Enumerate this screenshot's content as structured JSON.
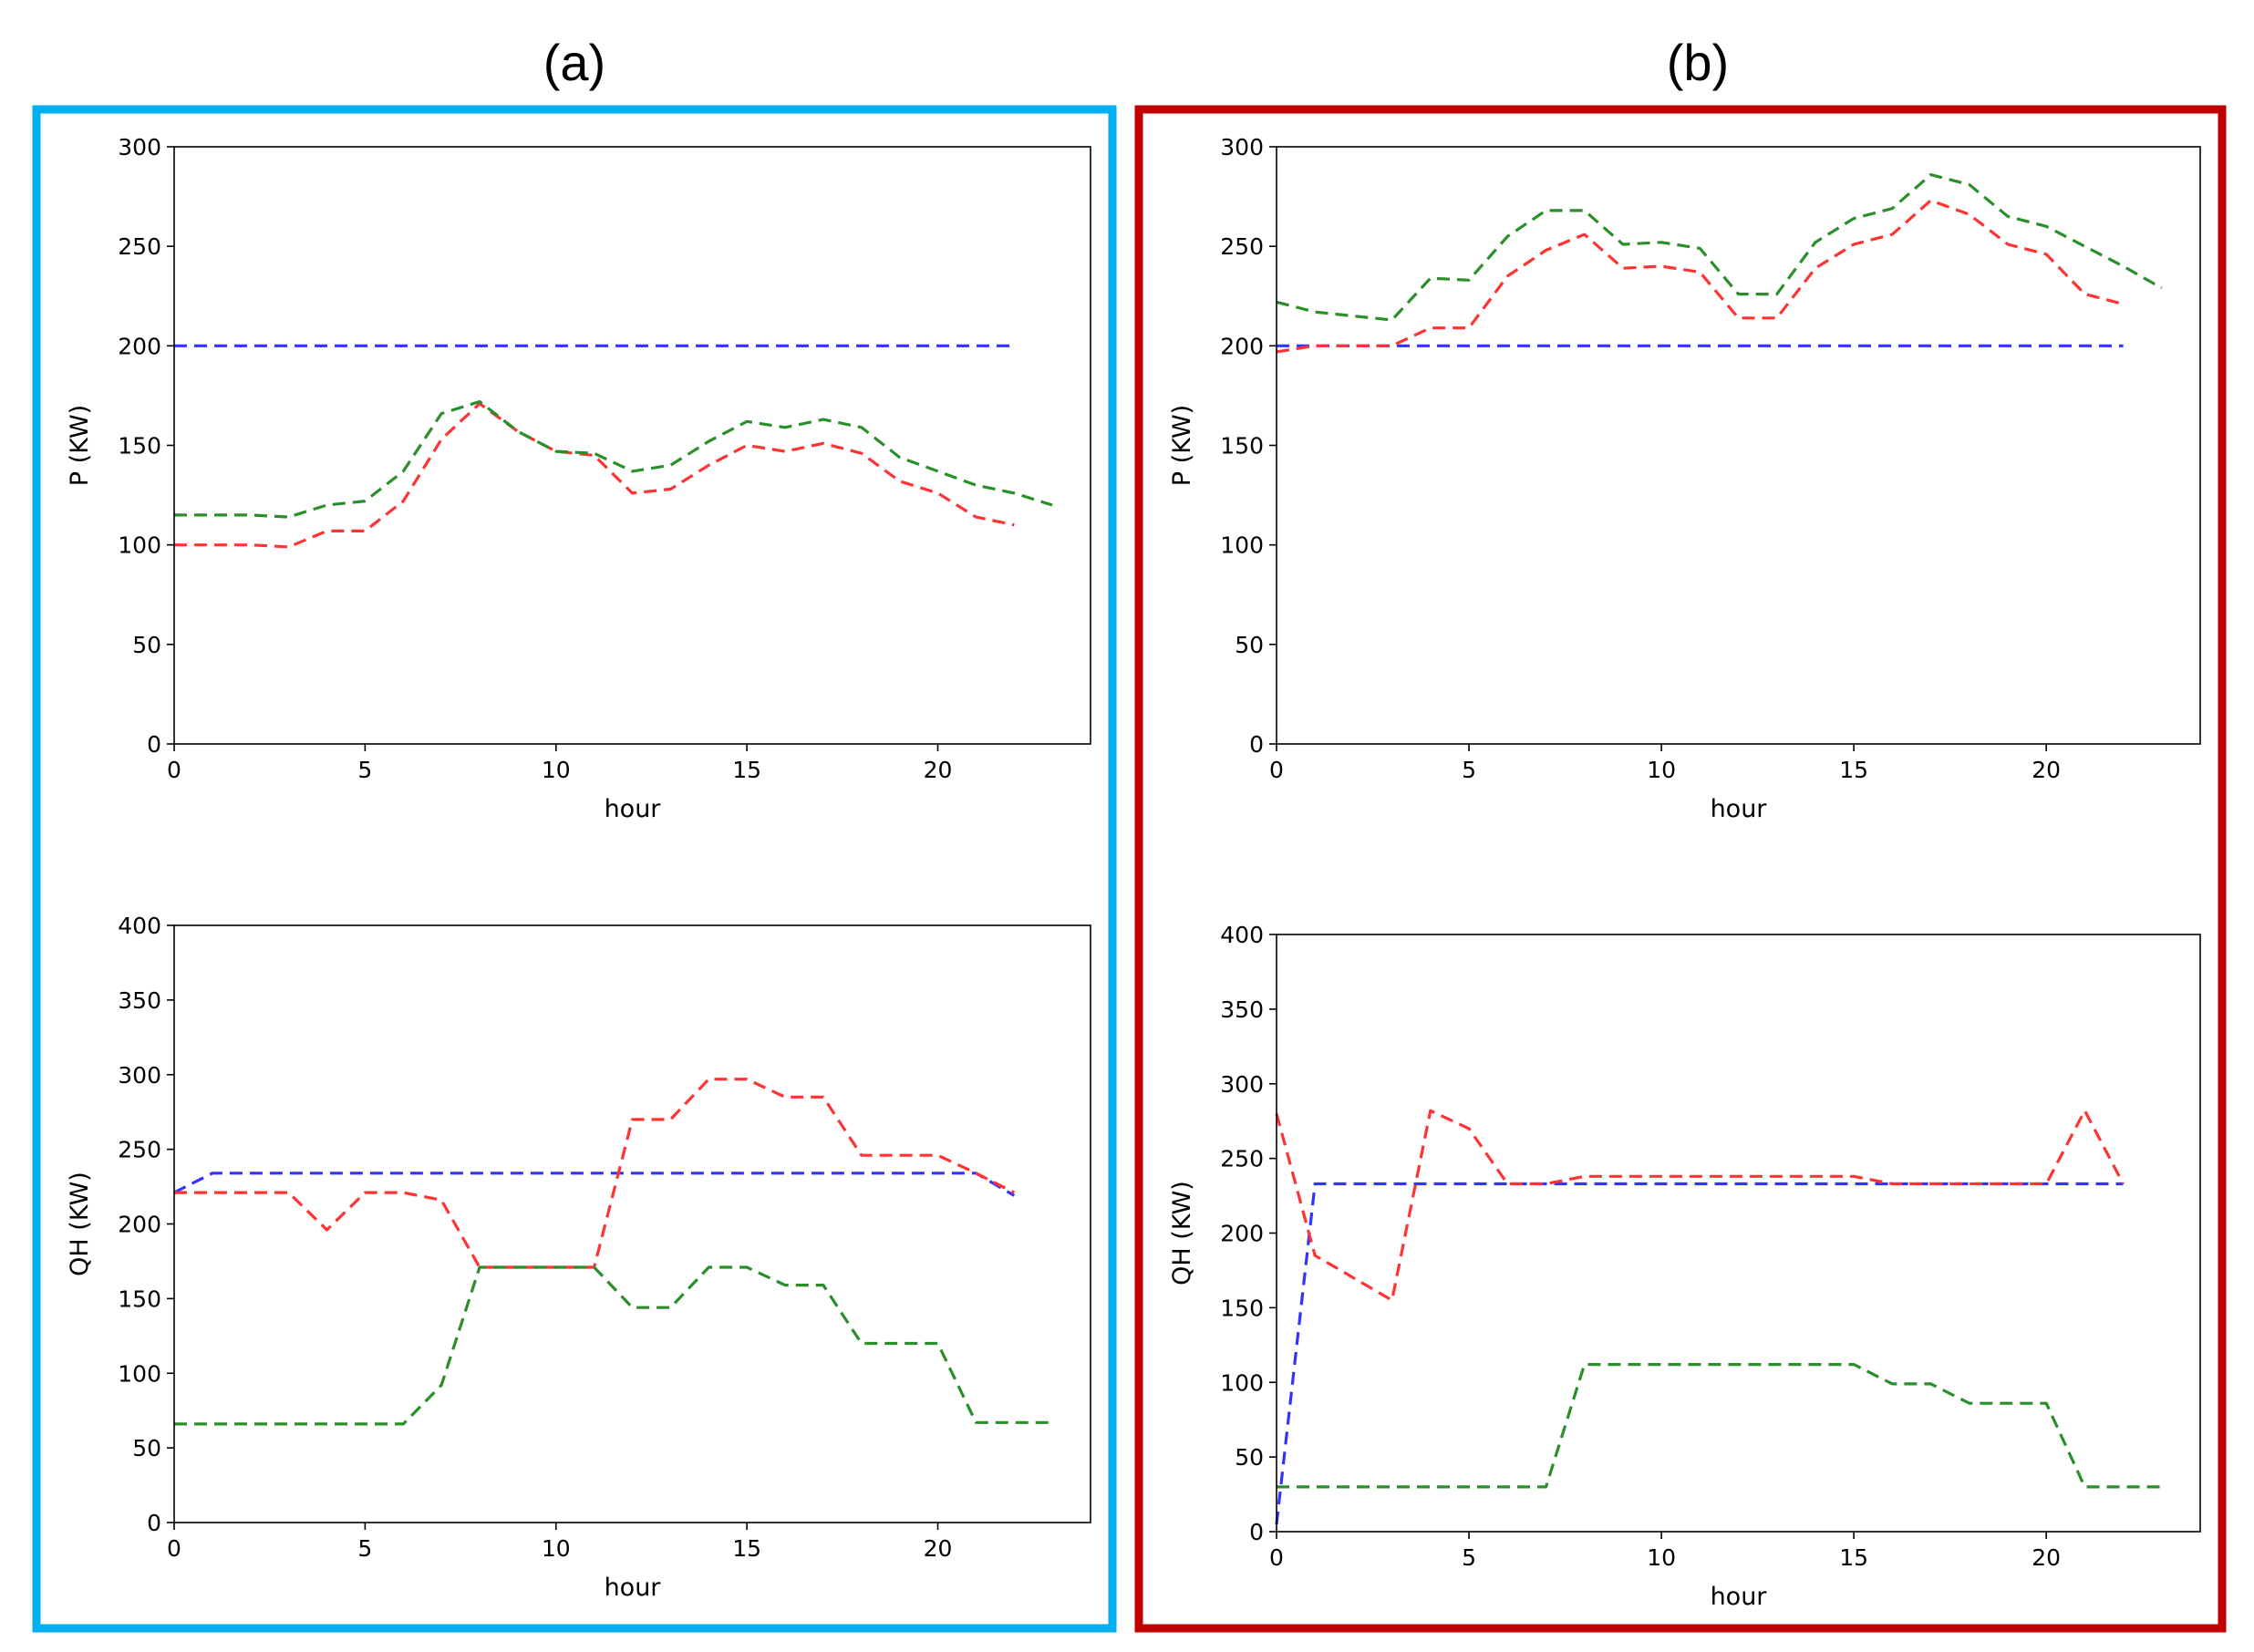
{
  "panels": [
    {
      "label": "(a)",
      "border_color": "#00b0f0"
    },
    {
      "label": "(b)",
      "border_color": "#c00000"
    }
  ],
  "series_colors": {
    "blue": "#3333ff",
    "red": "#ff3333",
    "green": "#2a8f2a"
  },
  "chart_data": [
    {
      "id": "a-power",
      "panel": "(a)",
      "type": "line",
      "xlabel": "hour",
      "ylabel": "P (KW)",
      "xlim": [
        0,
        24
      ],
      "ylim": [
        0,
        300
      ],
      "xticks": [
        0,
        5,
        10,
        15,
        20
      ],
      "yticks": [
        0,
        50,
        100,
        150,
        200,
        250,
        300
      ],
      "series": [
        {
          "color": "blue",
          "x": [
            0,
            1,
            2,
            3,
            4,
            5,
            6,
            7,
            8,
            9,
            10,
            11,
            12,
            13,
            14,
            15,
            16,
            17,
            18,
            19,
            20,
            21,
            22
          ],
          "values": [
            200,
            200,
            200,
            200,
            200,
            200,
            200,
            200,
            200,
            200,
            200,
            200,
            200,
            200,
            200,
            200,
            200,
            200,
            200,
            200,
            200,
            200,
            200
          ]
        },
        {
          "color": "red",
          "x": [
            0,
            1,
            2,
            3,
            4,
            5,
            6,
            7,
            8,
            9,
            10,
            11,
            12,
            13,
            14,
            15,
            16,
            17,
            18,
            19,
            20,
            21,
            22
          ],
          "values": [
            100,
            100,
            100,
            99,
            107,
            107,
            122,
            153,
            171,
            157,
            147,
            145,
            126,
            128,
            140,
            150,
            147,
            151,
            146,
            132,
            126,
            114,
            110
          ]
        },
        {
          "color": "green",
          "x": [
            0,
            1,
            2,
            3,
            4,
            5,
            6,
            7,
            8,
            9,
            10,
            11,
            12,
            13,
            14,
            15,
            16,
            17,
            18,
            19,
            20,
            21,
            22,
            23
          ],
          "values": [
            115,
            115,
            115,
            114,
            120,
            122,
            137,
            166,
            172,
            157,
            147,
            146,
            137,
            140,
            152,
            162,
            159,
            163,
            159,
            144,
            137,
            130,
            126,
            120
          ]
        }
      ]
    },
    {
      "id": "a-heat",
      "panel": "(a)",
      "type": "line",
      "xlabel": "hour",
      "ylabel": "QH (KW)",
      "xlim": [
        0,
        24
      ],
      "ylim": [
        0,
        400
      ],
      "xticks": [
        0,
        5,
        10,
        15,
        20
      ],
      "yticks": [
        0,
        50,
        100,
        150,
        200,
        250,
        300,
        350,
        400
      ],
      "series": [
        {
          "color": "blue",
          "x": [
            0,
            1,
            2,
            3,
            4,
            5,
            6,
            7,
            8,
            9,
            10,
            11,
            12,
            13,
            14,
            15,
            16,
            17,
            18,
            19,
            20,
            21,
            22
          ],
          "values": [
            221,
            234,
            234,
            234,
            234,
            234,
            234,
            234,
            234,
            234,
            234,
            234,
            234,
            234,
            234,
            234,
            234,
            234,
            234,
            234,
            234,
            234,
            219
          ]
        },
        {
          "color": "red",
          "x": [
            0,
            1,
            2,
            3,
            4,
            5,
            6,
            7,
            8,
            9,
            10,
            11,
            12,
            13,
            14,
            15,
            16,
            17,
            18,
            19,
            20,
            21,
            22
          ],
          "values": [
            221,
            221,
            221,
            221,
            196,
            221,
            221,
            216,
            171,
            171,
            171,
            171,
            270,
            270,
            297,
            297,
            285,
            285,
            246,
            246,
            246,
            234,
            221
          ]
        },
        {
          "color": "green",
          "x": [
            0,
            1,
            2,
            3,
            4,
            5,
            6,
            7,
            8,
            9,
            10,
            11,
            12,
            13,
            14,
            15,
            16,
            17,
            18,
            19,
            20,
            21,
            22,
            23
          ],
          "values": [
            66,
            66,
            66,
            66,
            66,
            66,
            66,
            92,
            171,
            171,
            171,
            171,
            144,
            144,
            171,
            171,
            159,
            159,
            120,
            120,
            120,
            67,
            67,
            67
          ]
        }
      ]
    },
    {
      "id": "b-power",
      "panel": "(b)",
      "type": "line",
      "xlabel": "hour",
      "ylabel": "P (KW)",
      "xlim": [
        0,
        24
      ],
      "ylim": [
        0,
        300
      ],
      "xticks": [
        0,
        5,
        10,
        15,
        20
      ],
      "yticks": [
        0,
        50,
        100,
        150,
        200,
        250,
        300
      ],
      "series": [
        {
          "color": "blue",
          "x": [
            0,
            1,
            2,
            3,
            4,
            5,
            6,
            7,
            8,
            9,
            10,
            11,
            12,
            13,
            14,
            15,
            16,
            17,
            18,
            19,
            20,
            21,
            22
          ],
          "values": [
            200,
            200,
            200,
            200,
            200,
            200,
            200,
            200,
            200,
            200,
            200,
            200,
            200,
            200,
            200,
            200,
            200,
            200,
            200,
            200,
            200,
            200,
            200
          ]
        },
        {
          "color": "red",
          "x": [
            0,
            1,
            2,
            3,
            4,
            5,
            6,
            7,
            8,
            9,
            10,
            11,
            12,
            13,
            14,
            15,
            16,
            17,
            18,
            19,
            20,
            21,
            22
          ],
          "values": [
            197,
            200,
            200,
            200,
            209,
            209,
            235,
            248,
            256,
            239,
            240,
            237,
            214,
            214,
            239,
            251,
            256,
            273,
            266,
            251,
            246,
            226,
            221
          ]
        },
        {
          "color": "green",
          "x": [
            0,
            1,
            2,
            3,
            4,
            5,
            6,
            7,
            8,
            9,
            10,
            11,
            12,
            13,
            14,
            15,
            16,
            17,
            18,
            19,
            20,
            21,
            22,
            23
          ],
          "values": [
            222,
            217,
            215,
            213,
            234,
            233,
            255,
            268,
            268,
            251,
            252,
            249,
            226,
            226,
            252,
            264,
            269,
            286,
            281,
            265,
            260,
            250,
            240,
            229
          ]
        }
      ]
    },
    {
      "id": "b-heat",
      "panel": "(b)",
      "type": "line",
      "xlabel": "hour",
      "ylabel": "QH (KW)",
      "xlim": [
        0,
        24
      ],
      "ylim": [
        0,
        400
      ],
      "xticks": [
        0,
        5,
        10,
        15,
        20
      ],
      "yticks": [
        0,
        50,
        100,
        150,
        200,
        250,
        300,
        350,
        400
      ],
      "series": [
        {
          "color": "blue",
          "x": [
            0,
            1,
            2,
            3,
            4,
            5,
            6,
            7,
            8,
            9,
            10,
            11,
            12,
            13,
            14,
            15,
            16,
            17,
            18,
            19,
            20,
            21,
            22
          ],
          "values": [
            5,
            233,
            233,
            233,
            233,
            233,
            233,
            233,
            233,
            233,
            233,
            233,
            233,
            233,
            233,
            233,
            233,
            233,
            233,
            233,
            233,
            233,
            233
          ]
        },
        {
          "color": "red",
          "x": [
            0,
            1,
            2,
            3,
            4,
            5,
            6,
            7,
            8,
            9,
            10,
            11,
            12,
            13,
            14,
            15,
            16,
            17,
            18,
            19,
            20,
            21,
            22
          ],
          "values": [
            280,
            185,
            170,
            155,
            282,
            270,
            233,
            233,
            238,
            238,
            238,
            238,
            238,
            238,
            238,
            238,
            233,
            233,
            233,
            233,
            233,
            282,
            233
          ]
        },
        {
          "color": "green",
          "x": [
            0,
            1,
            2,
            3,
            4,
            5,
            6,
            7,
            8,
            9,
            10,
            11,
            12,
            13,
            14,
            15,
            16,
            17,
            18,
            19,
            20,
            21,
            22,
            23
          ],
          "values": [
            30,
            30,
            30,
            30,
            30,
            30,
            30,
            30,
            112,
            112,
            112,
            112,
            112,
            112,
            112,
            112,
            99,
            99,
            86,
            86,
            86,
            30,
            30,
            30
          ]
        }
      ]
    }
  ]
}
